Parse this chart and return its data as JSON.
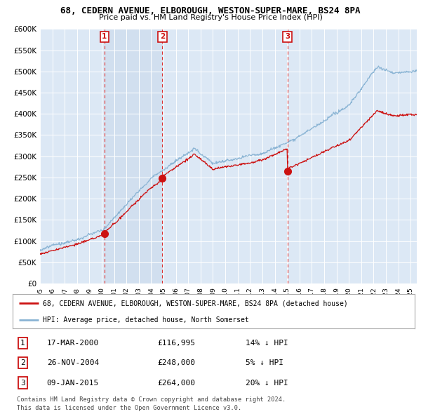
{
  "title": "68, CEDERN AVENUE, ELBOROUGH, WESTON-SUPER-MARE, BS24 8PA",
  "subtitle": "Price paid vs. HM Land Registry's House Price Index (HPI)",
  "background_color": "#ffffff",
  "plot_bg_color": "#dce8f5",
  "plot_bg_shade": "#c8d8ea",
  "grid_color": "#ffffff",
  "ylim": [
    0,
    600000
  ],
  "yticks": [
    0,
    50000,
    100000,
    150000,
    200000,
    250000,
    300000,
    350000,
    400000,
    450000,
    500000,
    550000,
    600000
  ],
  "ytick_labels": [
    "£0",
    "£50K",
    "£100K",
    "£150K",
    "£200K",
    "£250K",
    "£300K",
    "£350K",
    "£400K",
    "£450K",
    "£500K",
    "£550K",
    "£600K"
  ],
  "xlim_start": 1995.0,
  "xlim_end": 2025.5,
  "xtick_years": [
    1995,
    1996,
    1997,
    1998,
    1999,
    2000,
    2001,
    2002,
    2003,
    2004,
    2005,
    2006,
    2007,
    2008,
    2009,
    2010,
    2011,
    2012,
    2013,
    2014,
    2015,
    2016,
    2017,
    2018,
    2019,
    2020,
    2021,
    2022,
    2023,
    2024,
    2025
  ],
  "hpi_color": "#8ab4d4",
  "price_color": "#cc1111",
  "sale_marker_color": "#cc1111",
  "sale_vline_color": "#dd3333",
  "sale_points": [
    {
      "label": "1",
      "year": 2000.21,
      "price": 116995
    },
    {
      "label": "2",
      "year": 2004.91,
      "price": 248000
    },
    {
      "label": "3",
      "year": 2015.03,
      "price": 264000
    }
  ],
  "legend_line1": "68, CEDERN AVENUE, ELBOROUGH, WESTON-SUPER-MARE, BS24 8PA (detached house)",
  "legend_line2": "HPI: Average price, detached house, North Somerset",
  "footer1": "Contains HM Land Registry data © Crown copyright and database right 2024.",
  "footer2": "This data is licensed under the Open Government Licence v3.0.",
  "table_rows": [
    {
      "num": "1",
      "date": "17-MAR-2000",
      "price": "£116,995",
      "pct": "14% ↓ HPI"
    },
    {
      "num": "2",
      "date": "26-NOV-2004",
      "price": "£248,000",
      "pct": "5% ↓ HPI"
    },
    {
      "num": "3",
      "date": "09-JAN-2015",
      "price": "£264,000",
      "pct": "20% ↓ HPI"
    }
  ]
}
